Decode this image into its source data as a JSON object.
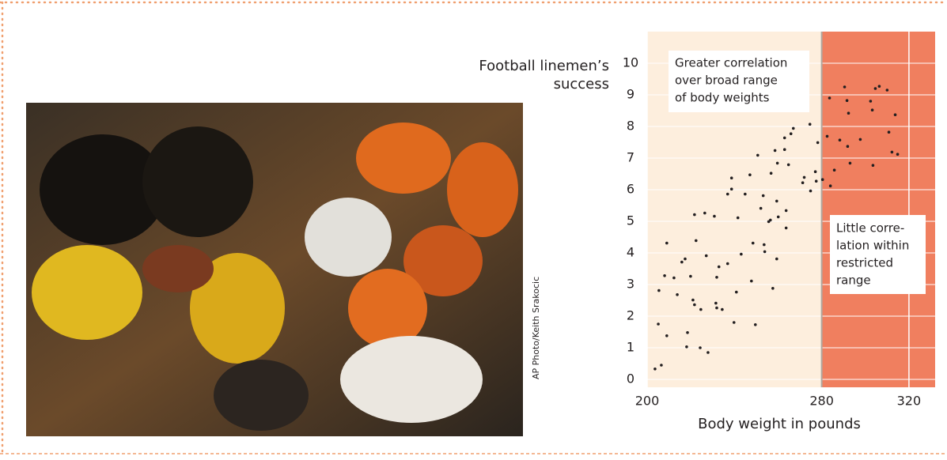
{
  "chart_data": {
    "type": "scatter",
    "y_label_lines": [
      "Football linemen’s",
      "success"
    ],
    "x_label": "Body weight in pounds",
    "photo_credit": "AP Photo/Keith Srakocic",
    "annotations": [
      {
        "lines": [
          "Greater correlation",
          "over broad range",
          "of body weights"
        ]
      },
      {
        "lines": [
          "Little corre-",
          "lation within",
          "restricted",
          "range"
        ]
      }
    ],
    "xlim": [
      200,
      332
    ],
    "ylim": [
      -0.25,
      11
    ],
    "xticks": [
      200,
      280,
      320
    ],
    "yticks": [
      0,
      1,
      2,
      3,
      4,
      5,
      6,
      7,
      8,
      9,
      10
    ],
    "highlight_from": 280,
    "highlight_color": "#f07f5f",
    "background_color": "#fdeedd",
    "grid": true,
    "color": "#231f20",
    "x": [
      203.6,
      206.5,
      205.1,
      209.0,
      205.4,
      208.0,
      209.0,
      212.3,
      213.8,
      215.9,
      217.4,
      218.5,
      218.1,
      219.9,
      221.0,
      221.7,
      221.7,
      222.4,
      224.6,
      224.3,
      226.4,
      227.9,
      227.1,
      230.8,
      231.9,
      231.5,
      231.9,
      232.9,
      234.4,
      236.9,
      236.9,
      238.7,
      238.7,
      239.8,
      240.9,
      241.6,
      243.1,
      244.9,
      247.1,
      247.8,
      248.5,
      249.6,
      250.7,
      252.1,
      253.2,
      253.6,
      253.9,
      255.7,
      256.8,
      256.5,
      257.6,
      258.6,
      259.4,
      259.4,
      259.7,
      260.1,
      263.0,
      263.0,
      263.7,
      263.7,
      264.8,
      265.9,
      267.0,
      271.3,
      272.0,
      274.6,
      274.9,
      277.1,
      277.5,
      278.2,
      280.4,
      282.5,
      283.6,
      284.0,
      285.8,
      288.3,
      290.5,
      291.6,
      292.3,
      291.9,
      293.0,
      297.7,
      302.4,
      303.2,
      303.5,
      304.6,
      306.4,
      310.0,
      310.8,
      312.2,
      313.7,
      314.8
    ],
    "y": [
      0.33,
      0.45,
      1.75,
      1.38,
      2.81,
      3.28,
      4.31,
      3.21,
      2.68,
      3.71,
      3.81,
      1.48,
      1.03,
      3.26,
      2.51,
      5.21,
      2.36,
      4.39,
      2.21,
      1.0,
      5.26,
      0.85,
      3.91,
      5.16,
      3.23,
      2.41,
      2.26,
      3.56,
      2.21,
      3.66,
      5.86,
      6.37,
      6.02,
      1.8,
      2.76,
      5.11,
      3.96,
      5.86,
      6.47,
      3.11,
      4.31,
      1.73,
      7.09,
      5.41,
      5.81,
      4.26,
      4.04,
      4.99,
      6.52,
      5.04,
      2.88,
      7.24,
      5.64,
      3.81,
      6.84,
      5.14,
      7.27,
      7.64,
      5.34,
      4.79,
      6.79,
      7.77,
      7.94,
      6.22,
      6.39,
      8.07,
      5.96,
      6.57,
      6.27,
      7.49,
      6.32,
      7.69,
      8.9,
      6.12,
      6.62,
      7.57,
      9.25,
      8.82,
      8.42,
      7.37,
      6.84,
      7.59,
      8.8,
      8.52,
      6.77,
      9.2,
      9.27,
      9.15,
      7.82,
      7.19,
      8.37,
      7.12
    ]
  }
}
